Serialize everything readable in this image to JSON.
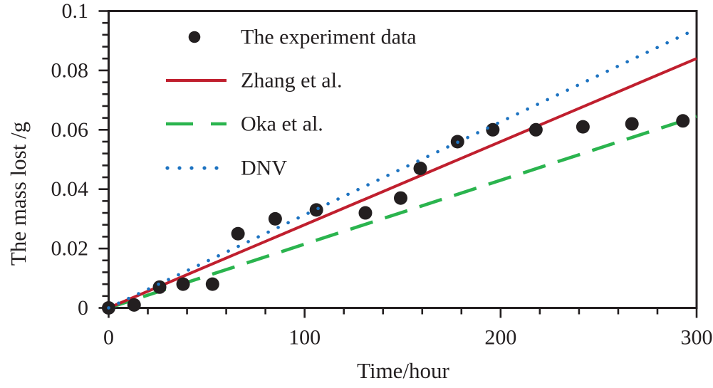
{
  "chart_data": {
    "type": "scatter",
    "title": "",
    "xlabel": "Time/hour",
    "ylabel": "The mass lost /g",
    "xlim": [
      0,
      300
    ],
    "ylim": [
      0,
      0.1
    ],
    "x_major_ticks": [
      0,
      100,
      200,
      300
    ],
    "x_tick_labels": [
      "0",
      "100",
      "200",
      "300"
    ],
    "x_minor_step": 20,
    "y_major_ticks": [
      0,
      0.02,
      0.04,
      0.06,
      0.08,
      0.1
    ],
    "y_tick_labels": [
      "0",
      "0.02",
      "0.04",
      "0.06",
      "0.08",
      "0.1"
    ],
    "y_minor_step": 0.004,
    "grid": "off",
    "legend_position": "top-left-inside",
    "axis_color": "#231f20",
    "text_color": "#231f20",
    "background_color": "#ffffff",
    "series": [
      {
        "name": "The experiment data",
        "kind": "scatter",
        "marker": "filled-circle",
        "color": "#231f20",
        "points": [
          [
            0,
            0.0
          ],
          [
            13,
            0.001
          ],
          [
            26,
            0.007
          ],
          [
            38,
            0.008
          ],
          [
            53,
            0.008
          ],
          [
            66,
            0.025
          ],
          [
            85,
            0.03
          ],
          [
            106,
            0.033
          ],
          [
            131,
            0.032
          ],
          [
            149,
            0.037
          ],
          [
            159,
            0.047
          ],
          [
            178,
            0.056
          ],
          [
            196,
            0.06
          ],
          [
            218,
            0.06
          ],
          [
            242,
            0.061
          ],
          [
            267,
            0.062
          ],
          [
            293,
            0.063
          ]
        ]
      },
      {
        "name": "Oka et al.",
        "kind": "line",
        "style": "dashed",
        "color": "#2ab44e",
        "points": [
          [
            0,
            0
          ],
          [
            300,
            0.0645
          ]
        ]
      },
      {
        "name": "Zhang et al.",
        "kind": "line",
        "style": "solid",
        "color": "#c01f2e",
        "points": [
          [
            0,
            0
          ],
          [
            300,
            0.084
          ]
        ]
      },
      {
        "name": "DNV",
        "kind": "line",
        "style": "dotted",
        "color": "#1d73c1",
        "points": [
          [
            0,
            0
          ],
          [
            300,
            0.094
          ]
        ]
      }
    ],
    "legend_order": [
      "The experiment data",
      "Zhang et al.",
      "Oka et al.",
      "DNV"
    ]
  }
}
